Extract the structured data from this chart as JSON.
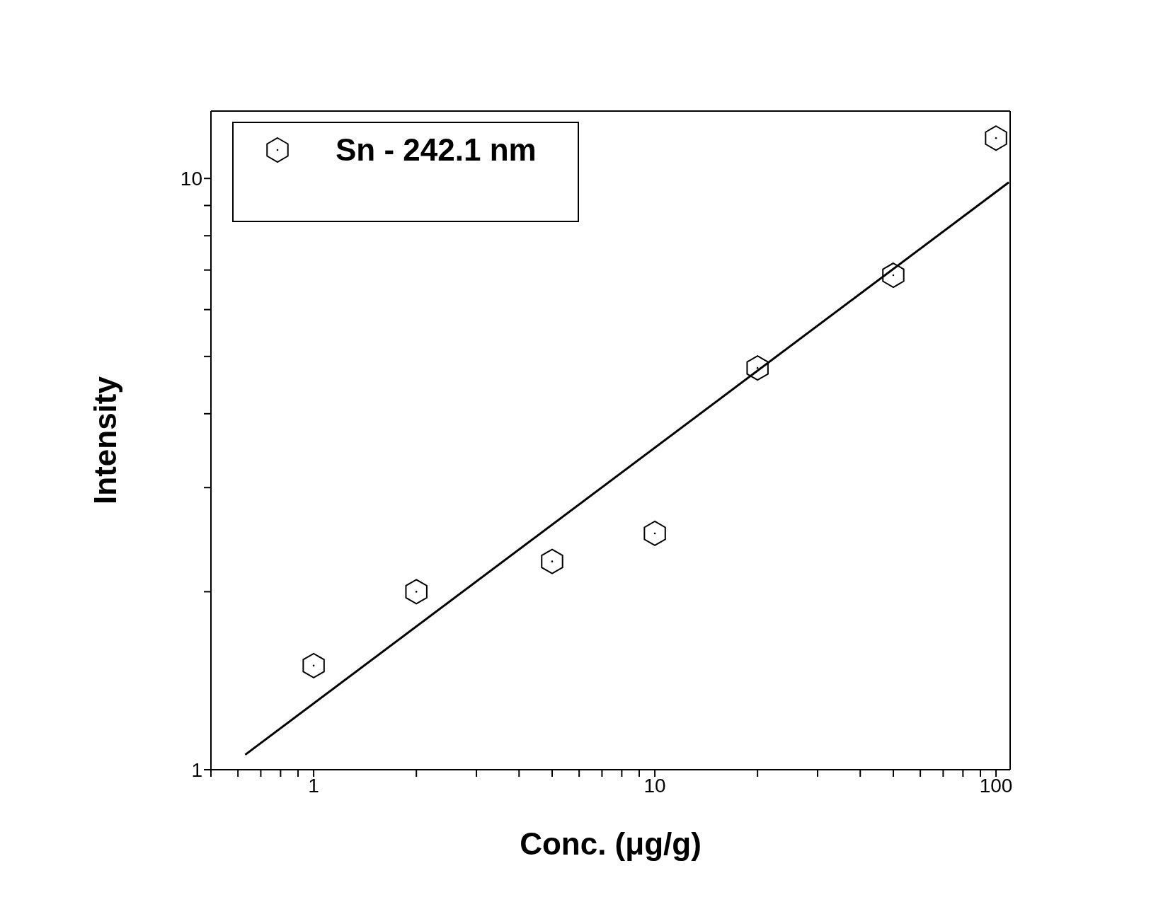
{
  "chart_data": {
    "type": "scatter",
    "xlabel": "Conc. (μg/g)",
    "ylabel": "Intensity",
    "log": "xy",
    "legend": "top left",
    "xlim": [
      0.5,
      110
    ],
    "ylim": [
      1,
      13
    ],
    "xticks": [
      {
        "value": 0.5,
        "label": null
      },
      {
        "value": 0.6,
        "label": null
      },
      {
        "value": 0.7,
        "label": null
      },
      {
        "value": 0.8,
        "label": null
      },
      {
        "value": 0.9,
        "label": null
      },
      1,
      {
        "value": 2,
        "label": null
      },
      {
        "value": 3,
        "label": null
      },
      {
        "value": 4,
        "label": null
      },
      {
        "value": 5,
        "label": null
      },
      {
        "value": 6,
        "label": null
      },
      {
        "value": 7,
        "label": null
      },
      {
        "value": 8,
        "label": null
      },
      {
        "value": 9,
        "label": null
      },
      10,
      {
        "value": 20,
        "label": null
      },
      {
        "value": 30,
        "label": null
      },
      {
        "value": 40,
        "label": null
      },
      {
        "value": 50,
        "label": null
      },
      {
        "value": 60,
        "label": null
      },
      {
        "value": 70,
        "label": null
      },
      {
        "value": 80,
        "label": null
      },
      {
        "value": 90,
        "label": null
      },
      100
    ],
    "yticks": [
      1,
      {
        "value": 2,
        "label": null
      },
      {
        "value": 3,
        "label": null
      },
      {
        "value": 4,
        "label": null
      },
      {
        "value": 5,
        "label": null
      },
      {
        "value": 6,
        "label": null
      },
      {
        "value": 7,
        "label": null
      },
      {
        "value": 8,
        "label": null
      },
      {
        "value": 9,
        "label": null
      },
      10
    ],
    "series": [
      {
        "name": "Sn - 242.1 nm",
        "color": "#000000",
        "x": [
          1,
          2,
          5,
          10,
          20,
          50,
          100
        ],
        "values": [
          1.5,
          2.0,
          2.25,
          2.51,
          4.78,
          6.86,
          11.7
        ]
      },
      {
        "type": "line",
        "color": "#000000",
        "line_style": "solid",
        "x": [
          0.63,
          109
        ],
        "values": [
          1.06,
          9.85
        ]
      }
    ]
  }
}
